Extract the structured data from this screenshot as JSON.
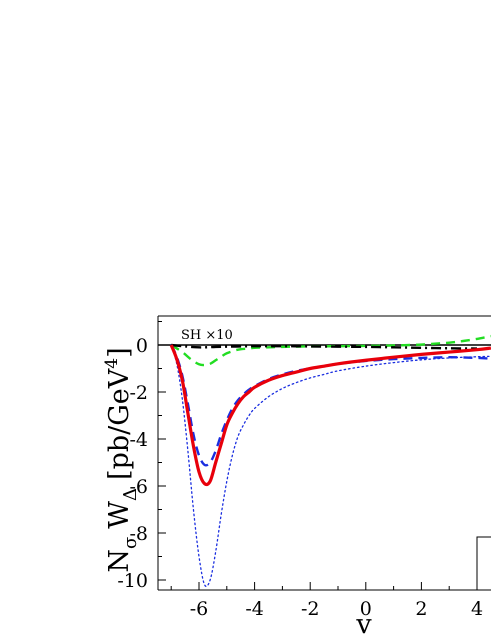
{
  "chart_data": {
    "type": "line",
    "xlabel": "v",
    "ylabel_main": "N",
    "ylabel_sub_sigma": "σ",
    "ylabel_W": "W",
    "ylabel_sub_delta": "Δ",
    "ylabel_units": "[pb/GeV",
    "ylabel_units_exp": "4",
    "ylabel_units_close": "]",
    "annotation": "SH ×10",
    "xlim": [
      -7.5,
      5.0
    ],
    "ylim": [
      -10.5,
      1.2
    ],
    "x_ticks": [
      -6,
      -4,
      -2,
      0,
      2,
      4
    ],
    "x_tick_labels": [
      "-6",
      "-4",
      "-2",
      "0",
      "2",
      "4"
    ],
    "y_ticks": [
      0,
      -2,
      -4,
      -6,
      -8,
      -10
    ],
    "y_tick_labels": [
      "0",
      "-2",
      "-4",
      "-6",
      "-8",
      "-10"
    ],
    "grid": false,
    "series": [
      {
        "style": "solid",
        "color": "#e8000b",
        "x": [
          -7.0,
          -6.8,
          -6.6,
          -6.4,
          -6.2,
          -6.0,
          -5.8,
          -5.6,
          -5.4,
          -5.2,
          -5.0,
          -4.8,
          -4.6,
          -4.4,
          -4.2,
          -4.0,
          -3.5,
          -3.0,
          -2.5,
          -2.0,
          -1.5,
          -1.0,
          0.0,
          1.0,
          2.0,
          3.0,
          4.0,
          4.5,
          5.0
        ],
        "y": [
          0.0,
          -0.6,
          -1.5,
          -2.9,
          -4.3,
          -5.4,
          -5.9,
          -5.8,
          -5.0,
          -4.2,
          -3.4,
          -2.9,
          -2.5,
          -2.2,
          -2.0,
          -1.8,
          -1.5,
          -1.3,
          -1.15,
          -1.0,
          -0.9,
          -0.8,
          -0.65,
          -0.52,
          -0.4,
          -0.3,
          -0.2,
          -0.13,
          -0.05
        ]
      },
      {
        "style": "dashed",
        "color": "#1a2ee0",
        "x": [
          -7.0,
          -6.8,
          -6.6,
          -6.4,
          -6.2,
          -6.0,
          -5.8,
          -5.6,
          -5.4,
          -5.2,
          -5.0,
          -4.8,
          -4.6,
          -4.4,
          -4.2,
          -4.0,
          -3.5,
          -3.0,
          -2.5,
          -2.0,
          -1.5,
          -1.0,
          0.0,
          1.0,
          2.0,
          3.0,
          4.0,
          4.5,
          5.0
        ],
        "y": [
          0.0,
          -0.5,
          -1.3,
          -2.5,
          -3.8,
          -4.7,
          -5.1,
          -5.0,
          -4.5,
          -3.8,
          -3.2,
          -2.7,
          -2.35,
          -2.1,
          -1.9,
          -1.75,
          -1.45,
          -1.25,
          -1.1,
          -1.0,
          -0.9,
          -0.8,
          -0.68,
          -0.6,
          -0.55,
          -0.52,
          -0.55,
          -0.58,
          -0.6
        ]
      },
      {
        "style": "dotted",
        "color": "#1a2ee0",
        "x": [
          -7.0,
          -6.8,
          -6.6,
          -6.4,
          -6.2,
          -6.0,
          -5.8,
          -5.6,
          -5.4,
          -5.2,
          -5.0,
          -4.8,
          -4.6,
          -4.4,
          -4.2,
          -4.0,
          -3.5,
          -3.0,
          -2.5,
          -2.0,
          -1.5,
          -1.0,
          0.0,
          1.0,
          2.0,
          3.0,
          4.0,
          4.5,
          5.0
        ],
        "y": [
          0.0,
          -0.8,
          -2.3,
          -4.5,
          -7.0,
          -9.0,
          -10.2,
          -10.0,
          -8.8,
          -7.2,
          -5.8,
          -4.7,
          -3.9,
          -3.4,
          -3.0,
          -2.7,
          -2.2,
          -1.85,
          -1.6,
          -1.4,
          -1.25,
          -1.1,
          -0.9,
          -0.75,
          -0.63,
          -0.55,
          -0.5,
          -0.48,
          -0.46
        ]
      },
      {
        "style": "dashed",
        "color": "#22dd22",
        "x": [
          -7.0,
          -6.6,
          -6.3,
          -6.0,
          -5.8,
          -5.6,
          -5.4,
          -5.2,
          -5.0,
          -4.6,
          -4.2,
          -4.0,
          -3.5,
          -3.0,
          -2.0,
          -1.0,
          0.0,
          1.0,
          2.0,
          3.0,
          3.5,
          4.0,
          4.5,
          5.0
        ],
        "y": [
          0.0,
          -0.3,
          -0.6,
          -0.82,
          -0.85,
          -0.8,
          -0.65,
          -0.5,
          -0.35,
          -0.2,
          -0.15,
          -0.12,
          -0.1,
          -0.08,
          -0.06,
          -0.05,
          -0.04,
          -0.02,
          0.02,
          0.1,
          0.17,
          0.26,
          0.38,
          0.5
        ]
      },
      {
        "style": "dashdot",
        "color": "#000000",
        "x": [
          -7.0,
          -6.6,
          -6.3,
          -6.0,
          -5.8,
          -5.6,
          -5.4,
          -5.0,
          -4.5,
          -4.0,
          -3.0,
          -2.0,
          -1.0,
          0.0,
          1.0,
          2.0,
          3.0,
          4.0,
          5.0
        ],
        "y": [
          0.0,
          -0.05,
          -0.08,
          -0.1,
          -0.1,
          -0.09,
          -0.08,
          -0.07,
          -0.06,
          -0.05,
          -0.05,
          -0.06,
          -0.07,
          -0.08,
          -0.1,
          -0.12,
          -0.14,
          -0.15,
          -0.15
        ]
      }
    ]
  }
}
